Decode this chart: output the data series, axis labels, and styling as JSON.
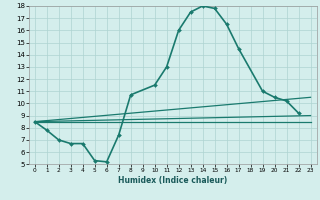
{
  "title": "",
  "xlabel": "Humidex (Indice chaleur)",
  "xlim": [
    -0.5,
    23.5
  ],
  "ylim": [
    5,
    18
  ],
  "yticks": [
    5,
    6,
    7,
    8,
    9,
    10,
    11,
    12,
    13,
    14,
    15,
    16,
    17,
    18
  ],
  "xticks": [
    0,
    1,
    2,
    3,
    4,
    5,
    6,
    7,
    8,
    9,
    10,
    11,
    12,
    13,
    14,
    15,
    16,
    17,
    18,
    19,
    20,
    21,
    22,
    23
  ],
  "bg_color": "#d4eeec",
  "grid_color": "#aed4d1",
  "line_color": "#1a7a6e",
  "main_x": [
    0,
    1,
    2,
    3,
    4,
    5,
    6,
    7,
    8,
    10,
    11,
    12,
    13,
    14,
    15,
    16,
    17,
    19,
    20,
    21,
    22
  ],
  "main_y": [
    8.5,
    7.8,
    7.0,
    6.7,
    6.7,
    5.3,
    5.2,
    7.4,
    10.7,
    11.5,
    13.0,
    16.0,
    17.5,
    18.0,
    17.8,
    16.5,
    14.5,
    11.0,
    10.5,
    10.2,
    9.2
  ],
  "ref_lines": [
    {
      "x": [
        0,
        23
      ],
      "y": [
        8.5,
        8.5
      ]
    },
    {
      "x": [
        0,
        23
      ],
      "y": [
        8.5,
        9.0
      ]
    },
    {
      "x": [
        0,
        23
      ],
      "y": [
        8.5,
        10.5
      ]
    }
  ]
}
